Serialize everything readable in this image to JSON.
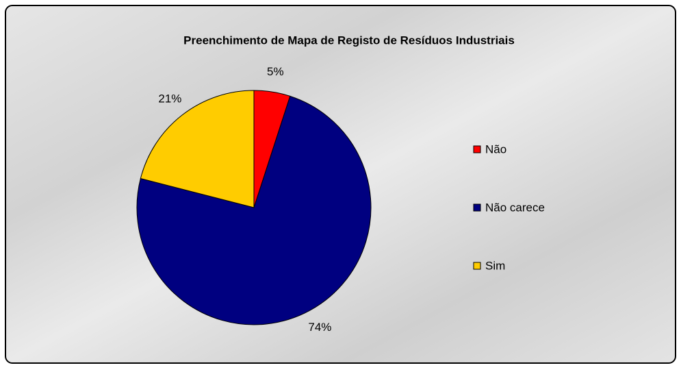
{
  "chart_data": {
    "type": "pie",
    "title": "Preenchimento de Mapa de Registo de Resíduos Industriais",
    "categories": [
      "Não",
      "Não carece",
      "Sim"
    ],
    "values": [
      5,
      74,
      21
    ],
    "value_labels": [
      "5%",
      "74%",
      "21%"
    ],
    "colors": [
      "#ff0000",
      "#000080",
      "#ffcc00"
    ],
    "legend": "right"
  }
}
